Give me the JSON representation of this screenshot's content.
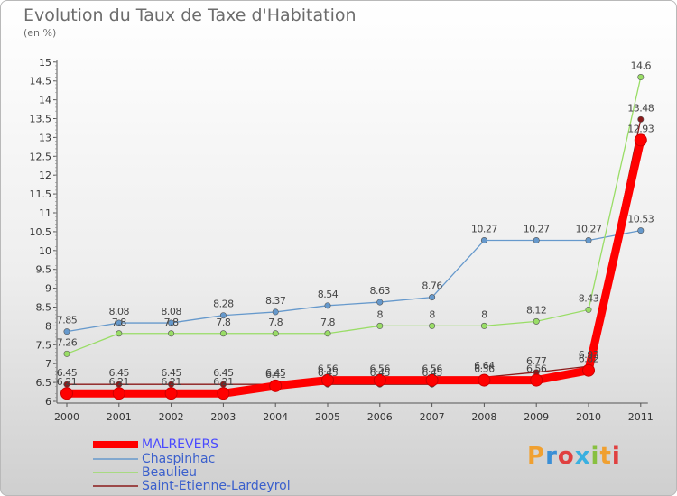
{
  "title": "Evolution du Taux de Taxe d'Habitation",
  "unit": "(en %)",
  "brand": "Proxiti",
  "chart_data": {
    "type": "line",
    "x": [
      "2000",
      "2001",
      "2002",
      "2003",
      "2004",
      "2005",
      "2006",
      "2007",
      "2008",
      "2009",
      "2010",
      "2011"
    ],
    "ylim": [
      6,
      15
    ],
    "yticks": [
      "6",
      "6.5",
      "7",
      "7.5",
      "8",
      "8.5",
      "9",
      "9.5",
      "10",
      "10.5",
      "11",
      "11.5",
      "12",
      "12.5",
      "13",
      "13.5",
      "14",
      "14.5",
      "15"
    ],
    "grid": false,
    "legend_position": "bottom-left",
    "series": [
      {
        "name": "MALREVERS",
        "color": "#ff0000",
        "values": [
          6.21,
          6.21,
          6.21,
          6.21,
          6.41,
          6.56,
          6.56,
          6.56,
          6.56,
          6.56,
          6.82,
          12.93
        ],
        "labels": [
          "6.21",
          "6.21",
          "6.21",
          "6.21",
          "6.41",
          "6.56",
          "6.56",
          "6.56",
          "6.56",
          "6.56",
          "6.82",
          "12.93"
        ]
      },
      {
        "name": "Chaspinhac",
        "color": "#6699cc",
        "values": [
          7.85,
          8.08,
          8.08,
          8.28,
          8.37,
          8.54,
          8.63,
          8.76,
          10.27,
          10.27,
          10.27,
          10.53
        ],
        "labels": [
          "7.85",
          "8.08",
          "8.08",
          "8.28",
          "8.37",
          "8.54",
          "8.63",
          "8.76",
          "10.27",
          "10.27",
          "10.27",
          "10.53"
        ]
      },
      {
        "name": "Beaulieu",
        "color": "#99dd66",
        "values": [
          7.26,
          7.8,
          7.8,
          7.8,
          7.8,
          7.8,
          8,
          8,
          8,
          8.12,
          8.43,
          14.6
        ],
        "labels": [
          "7.26",
          "7.8",
          "7.8",
          "7.8",
          "7.8",
          "7.8",
          "8",
          "8",
          "8",
          "8.12",
          "8.43",
          "14.6"
        ]
      },
      {
        "name": "Saint-Etienne-Lardeyrol",
        "color": "#8b1a1a",
        "values": [
          6.45,
          6.45,
          6.45,
          6.45,
          6.45,
          6.45,
          6.45,
          6.45,
          6.64,
          6.77,
          6.93,
          13.48
        ],
        "labels": [
          "6.45",
          "6.45",
          "6.45",
          "6.45",
          "6.45",
          "6.45",
          "6.45",
          "6.45",
          "6.64",
          "6.77",
          "6.93",
          "13.48"
        ]
      }
    ]
  }
}
